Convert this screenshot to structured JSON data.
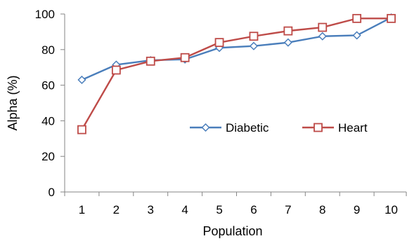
{
  "chart_data": {
    "type": "line",
    "xlabel": "Population",
    "ylabel": "Alpha (%)",
    "x": [
      1,
      2,
      3,
      4,
      5,
      6,
      7,
      8,
      9,
      10
    ],
    "ylim": [
      0,
      100
    ],
    "yticks": [
      0,
      20,
      40,
      60,
      80,
      100
    ],
    "grid": false,
    "legend_position": "center-right",
    "series": [
      {
        "name": "Diabetic",
        "marker": "diamond",
        "color": "#4a7ebb",
        "values": [
          63,
          71.5,
          74,
          74.5,
          81,
          82,
          84,
          87.5,
          88,
          98
        ]
      },
      {
        "name": "Heart",
        "marker": "square",
        "color": "#be4b48",
        "values": [
          35,
          68.5,
          73.5,
          75.5,
          84,
          87.5,
          90.5,
          92.5,
          97.5,
          97.5
        ]
      }
    ]
  }
}
